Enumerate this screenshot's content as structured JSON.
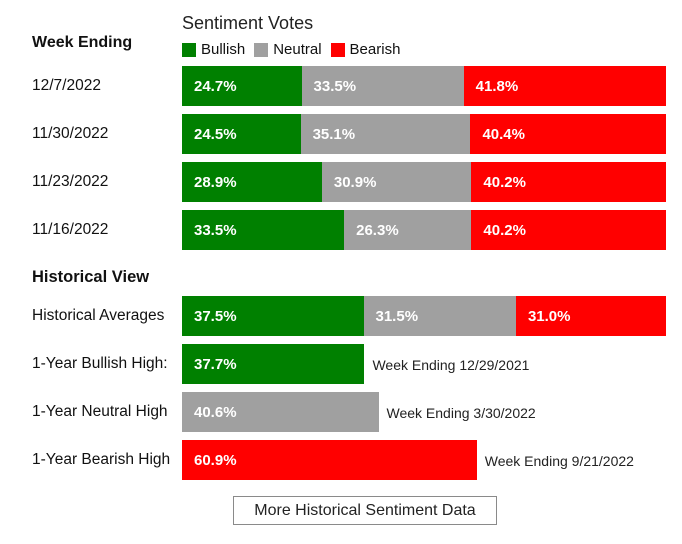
{
  "header": {
    "votes_title": "Sentiment Votes",
    "week_ending_label": "Week Ending"
  },
  "legend": [
    {
      "label": "Bullish",
      "color": "#008000"
    },
    {
      "label": "Neutral",
      "color": "#a0a0a0"
    },
    {
      "label": "Bearish",
      "color": "#ff0000"
    }
  ],
  "chart_data": [
    {
      "type": "bar",
      "stacked": true,
      "orientation": "horizontal",
      "title": "Sentiment Votes",
      "categories": [
        "12/7/2022",
        "11/30/2022",
        "11/23/2022",
        "11/16/2022"
      ],
      "series": [
        {
          "name": "Bullish",
          "color": "#008000",
          "values": [
            24.7,
            24.5,
            28.9,
            33.5
          ],
          "labels": [
            "24.7%",
            "24.5%",
            "28.9%",
            "33.5%"
          ]
        },
        {
          "name": "Neutral",
          "color": "#a0a0a0",
          "values": [
            33.5,
            35.1,
            30.9,
            26.3
          ],
          "labels": [
            "33.5%",
            "35.1%",
            "30.9%",
            "26.3%"
          ]
        },
        {
          "name": "Bearish",
          "color": "#ff0000",
          "values": [
            41.8,
            40.4,
            40.2,
            40.2
          ],
          "labels": [
            "41.8%",
            "40.4%",
            "40.2%",
            "40.2%"
          ]
        }
      ],
      "unit": "%",
      "xlim": [
        0,
        100
      ]
    },
    {
      "type": "bar",
      "stacked": true,
      "orientation": "horizontal",
      "title": "Historical View",
      "categories": [
        "Historical Averages"
      ],
      "series": [
        {
          "name": "Bullish",
          "color": "#008000",
          "values": [
            37.5
          ],
          "labels": [
            "37.5%"
          ]
        },
        {
          "name": "Neutral",
          "color": "#a0a0a0",
          "values": [
            31.5
          ],
          "labels": [
            "31.5%"
          ]
        },
        {
          "name": "Bearish",
          "color": "#ff0000",
          "values": [
            31.0
          ],
          "labels": [
            "31.0%"
          ]
        }
      ],
      "unit": "%",
      "xlim": [
        0,
        100
      ]
    },
    {
      "type": "bar",
      "orientation": "horizontal",
      "categories": [
        "1-Year Bullish High:",
        "1-Year Neutral High",
        "1-Year Bearish High"
      ],
      "values": [
        37.7,
        40.6,
        60.9
      ],
      "labels": [
        "37.7%",
        "40.6%",
        "60.9%"
      ],
      "colors": [
        "#008000",
        "#a0a0a0",
        "#ff0000"
      ],
      "annotations": [
        "Week Ending 12/29/2021",
        "Week Ending 3/30/2022",
        "Week Ending 9/21/2022"
      ],
      "unit": "%",
      "xlim": [
        0,
        100
      ]
    }
  ],
  "historical": {
    "heading": "Historical View"
  },
  "more_button_label": "More Historical Sentiment Data"
}
